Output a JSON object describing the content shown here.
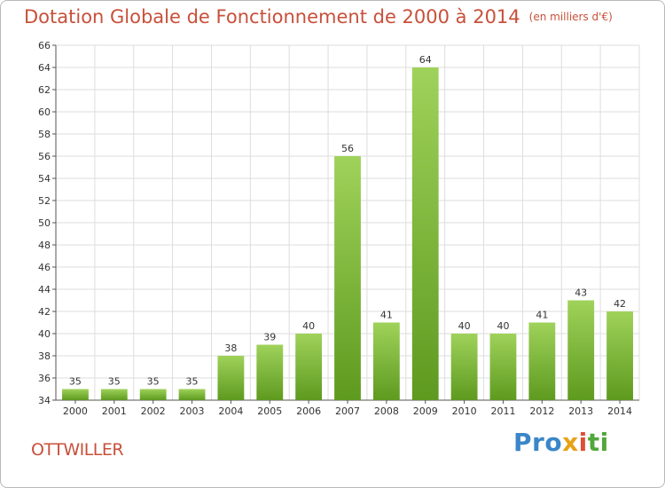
{
  "title": "Dotation Globale de Fonctionnement de 2000 à 2014",
  "subtitle": "(en milliers d'€)",
  "commune": "OTTWILLER",
  "logo": {
    "parts": [
      "Pro",
      "x",
      "i",
      "ti"
    ]
  },
  "colors": {
    "bar_top": "#9fd25a",
    "bar_bottom": "#5e9a1f",
    "title": "#c8503a",
    "grid": "#dddddd"
  },
  "chart_data": {
    "type": "bar",
    "title": "Dotation Globale de Fonctionnement de 2000 à 2014",
    "subtitle": "(en milliers d'€)",
    "categories": [
      "2000",
      "2001",
      "2002",
      "2003",
      "2004",
      "2005",
      "2006",
      "2007",
      "2008",
      "2009",
      "2010",
      "2011",
      "2012",
      "2013",
      "2014"
    ],
    "values": [
      35,
      35,
      35,
      35,
      38,
      39,
      40,
      56,
      41,
      64,
      40,
      40,
      41,
      43,
      42
    ],
    "ylim": [
      34,
      66
    ],
    "yticks": [
      34,
      36,
      38,
      40,
      42,
      44,
      46,
      48,
      50,
      52,
      54,
      56,
      58,
      60,
      62,
      64,
      66
    ],
    "xlabel": "",
    "ylabel": "",
    "grid": true
  }
}
